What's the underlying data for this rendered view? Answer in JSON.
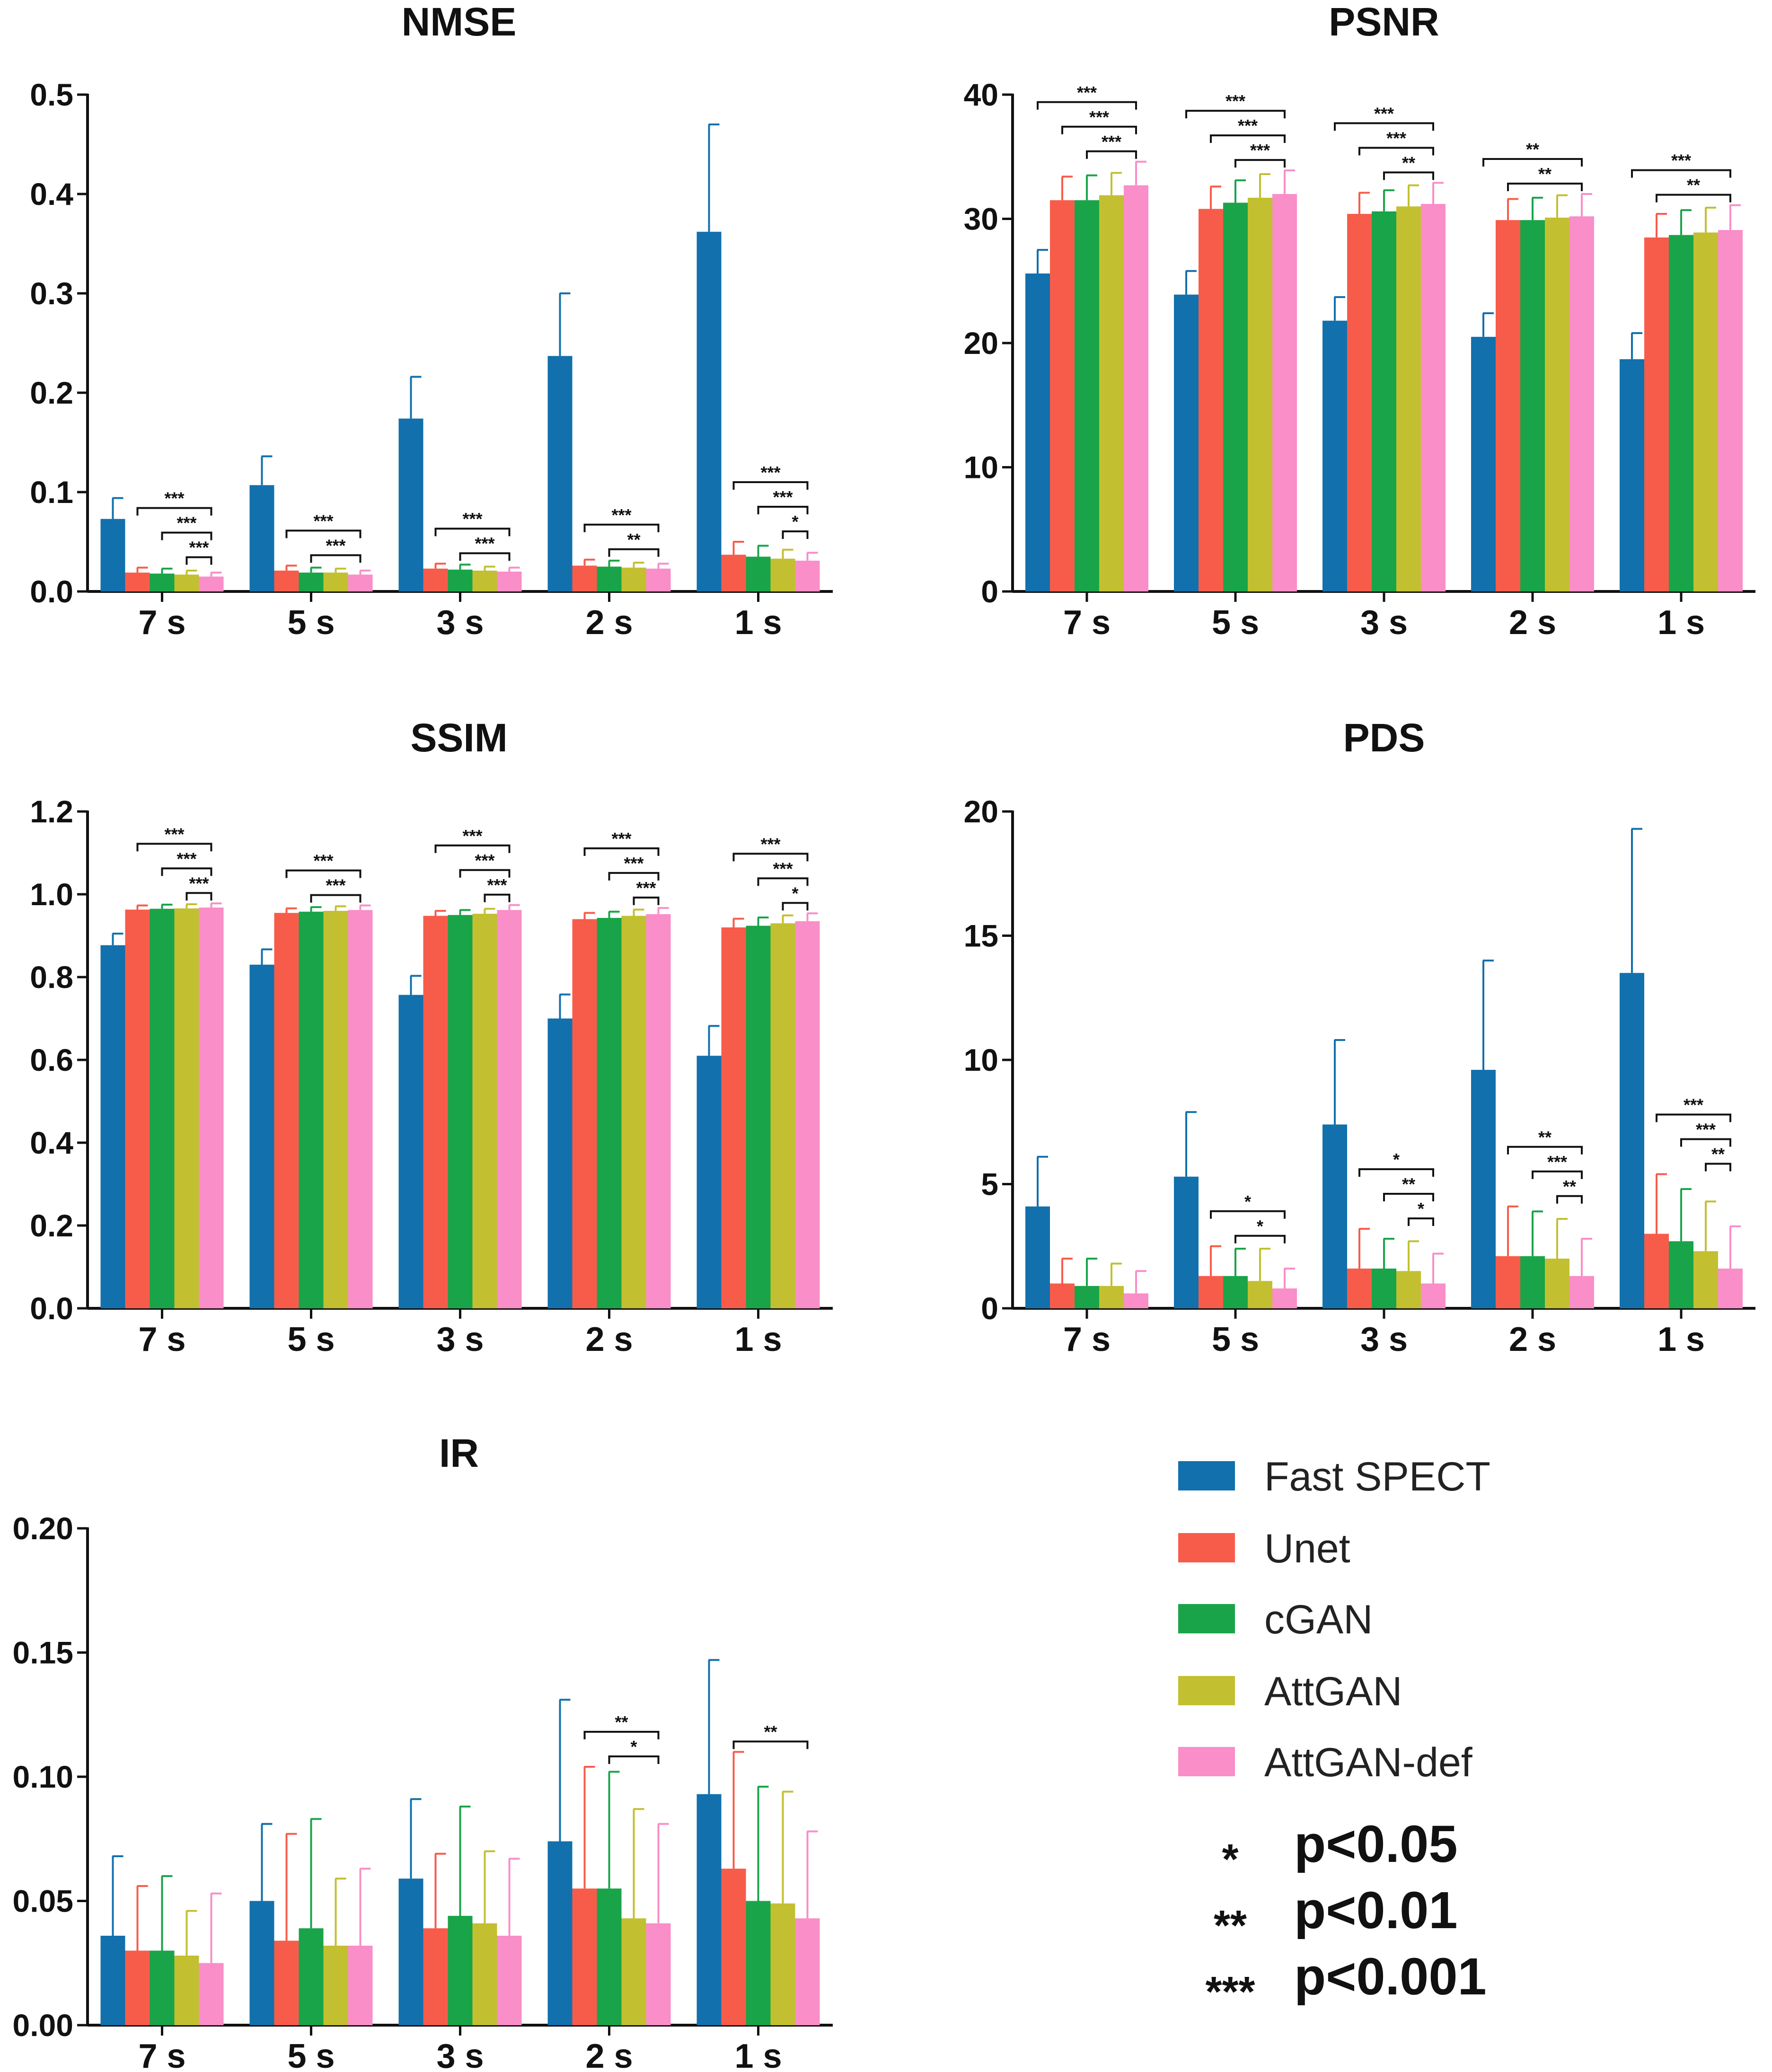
{
  "legend": {
    "items": [
      {
        "name": "Fast SPECT",
        "color": "#1270ad"
      },
      {
        "name": "Unet",
        "color": "#f75c4a"
      },
      {
        "name": "cGAN",
        "color": "#19a449"
      },
      {
        "name": "AttGAN",
        "color": "#c2c030"
      },
      {
        "name": "AttGAN-def",
        "color": "#f98ec8"
      }
    ],
    "significance": [
      {
        "stars": "*",
        "label": "p<0.05"
      },
      {
        "stars": "**",
        "label": "p<0.01"
      },
      {
        "stars": "***",
        "label": "p<0.001"
      }
    ]
  },
  "chart_data": [
    {
      "type": "bar",
      "title": "NMSE",
      "categories": [
        "7 s",
        "5 s",
        "3 s",
        "2 s",
        "1 s"
      ],
      "ylim": [
        0,
        0.5
      ],
      "yticks": [
        "0.0",
        "0.1",
        "0.2",
        "0.3",
        "0.4",
        "0.5"
      ],
      "series": [
        {
          "name": "Fast SPECT",
          "values": [
            0.073,
            0.107,
            0.174,
            0.237,
            0.362
          ],
          "errors": [
            0.021,
            0.029,
            0.042,
            0.063,
            0.108
          ]
        },
        {
          "name": "Unet",
          "values": [
            0.019,
            0.021,
            0.023,
            0.026,
            0.037
          ],
          "errors": [
            0.005,
            0.005,
            0.005,
            0.006,
            0.013
          ]
        },
        {
          "name": "cGAN",
          "values": [
            0.018,
            0.019,
            0.022,
            0.025,
            0.035
          ],
          "errors": [
            0.005,
            0.005,
            0.005,
            0.006,
            0.011
          ]
        },
        {
          "name": "AttGAN",
          "values": [
            0.017,
            0.019,
            0.021,
            0.024,
            0.033
          ],
          "errors": [
            0.004,
            0.004,
            0.004,
            0.005,
            0.009
          ]
        },
        {
          "name": "AttGAN-def",
          "values": [
            0.015,
            0.017,
            0.02,
            0.023,
            0.031
          ],
          "errors": [
            0.004,
            0.004,
            0.004,
            0.005,
            0.008
          ]
        }
      ],
      "significance": [
        {
          "group": 0,
          "from": 1,
          "to": 4,
          "label": "***"
        },
        {
          "group": 0,
          "from": 2,
          "to": 4,
          "label": "***"
        },
        {
          "group": 0,
          "from": 3,
          "to": 4,
          "label": "***"
        },
        {
          "group": 1,
          "from": 1,
          "to": 4,
          "label": "***"
        },
        {
          "group": 1,
          "from": 2,
          "to": 4,
          "label": "***"
        },
        {
          "group": 2,
          "from": 1,
          "to": 4,
          "label": "***"
        },
        {
          "group": 2,
          "from": 2,
          "to": 4,
          "label": "***"
        },
        {
          "group": 3,
          "from": 1,
          "to": 4,
          "label": "***"
        },
        {
          "group": 3,
          "from": 2,
          "to": 4,
          "label": "**"
        },
        {
          "group": 4,
          "from": 1,
          "to": 4,
          "label": "***"
        },
        {
          "group": 4,
          "from": 2,
          "to": 4,
          "label": "***"
        },
        {
          "group": 4,
          "from": 3,
          "to": 4,
          "label": "*"
        }
      ]
    },
    {
      "type": "bar",
      "title": "PSNR",
      "categories": [
        "7 s",
        "5 s",
        "3 s",
        "2 s",
        "1 s"
      ],
      "ylim": [
        0,
        40
      ],
      "yticks": [
        "0",
        "10",
        "20",
        "30",
        "40"
      ],
      "series": [
        {
          "name": "Fast SPECT",
          "values": [
            25.6,
            23.9,
            21.8,
            20.5,
            18.7
          ],
          "errors": [
            1.9,
            1.9,
            1.9,
            1.9,
            2.1
          ]
        },
        {
          "name": "Unet",
          "values": [
            31.5,
            30.8,
            30.4,
            29.9,
            28.5
          ],
          "errors": [
            1.9,
            1.8,
            1.7,
            1.7,
            1.9
          ]
        },
        {
          "name": "cGAN",
          "values": [
            31.5,
            31.3,
            30.6,
            29.9,
            28.7
          ],
          "errors": [
            2.0,
            1.8,
            1.7,
            1.8,
            2.0
          ]
        },
        {
          "name": "AttGAN",
          "values": [
            31.9,
            31.7,
            31.0,
            30.1,
            28.9
          ],
          "errors": [
            1.8,
            1.9,
            1.7,
            1.8,
            2.0
          ]
        },
        {
          "name": "AttGAN-def",
          "values": [
            32.7,
            32.0,
            31.2,
            30.2,
            29.1
          ],
          "errors": [
            1.9,
            1.9,
            1.7,
            1.8,
            2.0
          ]
        }
      ],
      "significance": [
        {
          "group": 0,
          "from": 0,
          "to": 4,
          "label": "***"
        },
        {
          "group": 0,
          "from": 1,
          "to": 4,
          "label": "***"
        },
        {
          "group": 0,
          "from": 2,
          "to": 4,
          "label": "***"
        },
        {
          "group": 1,
          "from": 0,
          "to": 4,
          "label": "***"
        },
        {
          "group": 1,
          "from": 1,
          "to": 4,
          "label": "***"
        },
        {
          "group": 1,
          "from": 2,
          "to": 4,
          "label": "***"
        },
        {
          "group": 2,
          "from": 0,
          "to": 4,
          "label": "***"
        },
        {
          "group": 2,
          "from": 1,
          "to": 4,
          "label": "***"
        },
        {
          "group": 2,
          "from": 2,
          "to": 4,
          "label": "**"
        },
        {
          "group": 3,
          "from": 0,
          "to": 4,
          "label": "**"
        },
        {
          "group": 3,
          "from": 1,
          "to": 4,
          "label": "**"
        },
        {
          "group": 4,
          "from": 0,
          "to": 4,
          "label": "***"
        },
        {
          "group": 4,
          "from": 1,
          "to": 4,
          "label": "**"
        }
      ]
    },
    {
      "type": "bar",
      "title": "SSIM",
      "categories": [
        "7 s",
        "5 s",
        "3 s",
        "2 s",
        "1 s"
      ],
      "ylim": [
        0,
        1.2
      ],
      "yticks": [
        "0.0",
        "0.2",
        "0.4",
        "0.6",
        "0.8",
        "1.0",
        "1.2"
      ],
      "series": [
        {
          "name": "Fast SPECT",
          "values": [
            0.877,
            0.83,
            0.757,
            0.7,
            0.61
          ],
          "errors": [
            0.028,
            0.037,
            0.046,
            0.058,
            0.072
          ]
        },
        {
          "name": "Unet",
          "values": [
            0.963,
            0.955,
            0.948,
            0.94,
            0.92
          ],
          "errors": [
            0.01,
            0.011,
            0.012,
            0.015,
            0.021
          ]
        },
        {
          "name": "cGAN",
          "values": [
            0.965,
            0.958,
            0.95,
            0.943,
            0.924
          ],
          "errors": [
            0.01,
            0.011,
            0.012,
            0.015,
            0.02
          ]
        },
        {
          "name": "AttGAN",
          "values": [
            0.966,
            0.96,
            0.953,
            0.948,
            0.93
          ],
          "errors": [
            0.01,
            0.011,
            0.012,
            0.015,
            0.019
          ]
        },
        {
          "name": "AttGAN-def",
          "values": [
            0.968,
            0.962,
            0.962,
            0.952,
            0.935
          ],
          "errors": [
            0.01,
            0.011,
            0.012,
            0.015,
            0.019
          ]
        }
      ],
      "significance": [
        {
          "group": 0,
          "from": 1,
          "to": 4,
          "label": "***"
        },
        {
          "group": 0,
          "from": 2,
          "to": 4,
          "label": "***"
        },
        {
          "group": 0,
          "from": 3,
          "to": 4,
          "label": "***"
        },
        {
          "group": 1,
          "from": 1,
          "to": 4,
          "label": "***"
        },
        {
          "group": 1,
          "from": 2,
          "to": 4,
          "label": "***"
        },
        {
          "group": 2,
          "from": 1,
          "to": 4,
          "label": "***"
        },
        {
          "group": 2,
          "from": 2,
          "to": 4,
          "label": "***"
        },
        {
          "group": 2,
          "from": 3,
          "to": 4,
          "label": "***"
        },
        {
          "group": 3,
          "from": 1,
          "to": 4,
          "label": "***"
        },
        {
          "group": 3,
          "from": 2,
          "to": 4,
          "label": "***"
        },
        {
          "group": 3,
          "from": 3,
          "to": 4,
          "label": "***"
        },
        {
          "group": 4,
          "from": 1,
          "to": 4,
          "label": "***"
        },
        {
          "group": 4,
          "from": 2,
          "to": 4,
          "label": "***"
        },
        {
          "group": 4,
          "from": 3,
          "to": 4,
          "label": "*"
        }
      ]
    },
    {
      "type": "bar",
      "title": "PDS",
      "categories": [
        "7 s",
        "5 s",
        "3 s",
        "2 s",
        "1 s"
      ],
      "ylim": [
        0,
        20
      ],
      "yticks": [
        "0",
        "5",
        "10",
        "15",
        "20"
      ],
      "series": [
        {
          "name": "Fast SPECT",
          "values": [
            4.1,
            5.3,
            7.4,
            9.6,
            13.5
          ],
          "errors": [
            2.0,
            2.6,
            3.4,
            4.4,
            5.8
          ]
        },
        {
          "name": "Unet",
          "values": [
            1.0,
            1.3,
            1.6,
            2.1,
            3.0
          ],
          "errors": [
            1.0,
            1.2,
            1.6,
            2.0,
            2.4
          ]
        },
        {
          "name": "cGAN",
          "values": [
            0.9,
            1.3,
            1.6,
            2.1,
            2.7
          ],
          "errors": [
            1.1,
            1.1,
            1.2,
            1.8,
            2.1
          ]
        },
        {
          "name": "AttGAN",
          "values": [
            0.9,
            1.1,
            1.5,
            2.0,
            2.3
          ],
          "errors": [
            0.9,
            1.3,
            1.2,
            1.6,
            2.0
          ]
        },
        {
          "name": "AttGAN-def",
          "values": [
            0.6,
            0.8,
            1.0,
            1.3,
            1.6
          ],
          "errors": [
            0.9,
            0.8,
            1.2,
            1.5,
            1.7
          ]
        }
      ],
      "significance": [
        {
          "group": 1,
          "from": 1,
          "to": 4,
          "label": "*"
        },
        {
          "group": 1,
          "from": 2,
          "to": 4,
          "label": "*"
        },
        {
          "group": 2,
          "from": 1,
          "to": 4,
          "label": "*"
        },
        {
          "group": 2,
          "from": 2,
          "to": 4,
          "label": "**"
        },
        {
          "group": 2,
          "from": 3,
          "to": 4,
          "label": "*"
        },
        {
          "group": 3,
          "from": 1,
          "to": 4,
          "label": "**"
        },
        {
          "group": 3,
          "from": 2,
          "to": 4,
          "label": "***"
        },
        {
          "group": 3,
          "from": 3,
          "to": 4,
          "label": "**"
        },
        {
          "group": 4,
          "from": 1,
          "to": 4,
          "label": "***"
        },
        {
          "group": 4,
          "from": 2,
          "to": 4,
          "label": "***"
        },
        {
          "group": 4,
          "from": 3,
          "to": 4,
          "label": "**"
        }
      ]
    },
    {
      "type": "bar",
      "title": "IR",
      "categories": [
        "7 s",
        "5 s",
        "3 s",
        "2 s",
        "1 s"
      ],
      "ylim": [
        0,
        0.2
      ],
      "yticks": [
        "0.00",
        "0.05",
        "0.10",
        "0.15",
        "0.20"
      ],
      "series": [
        {
          "name": "Fast SPECT",
          "values": [
            0.036,
            0.05,
            0.059,
            0.074,
            0.093
          ],
          "errors": [
            0.032,
            0.031,
            0.032,
            0.057,
            0.054
          ]
        },
        {
          "name": "Unet",
          "values": [
            0.03,
            0.034,
            0.039,
            0.055,
            0.063
          ],
          "errors": [
            0.026,
            0.043,
            0.03,
            0.049,
            0.047
          ]
        },
        {
          "name": "cGAN",
          "values": [
            0.03,
            0.039,
            0.044,
            0.055,
            0.05
          ],
          "errors": [
            0.03,
            0.044,
            0.044,
            0.047,
            0.046
          ]
        },
        {
          "name": "AttGAN",
          "values": [
            0.028,
            0.032,
            0.041,
            0.043,
            0.049
          ],
          "errors": [
            0.018,
            0.027,
            0.029,
            0.044,
            0.045
          ]
        },
        {
          "name": "AttGAN-def",
          "values": [
            0.025,
            0.032,
            0.036,
            0.041,
            0.043
          ],
          "errors": [
            0.028,
            0.031,
            0.031,
            0.04,
            0.035
          ]
        }
      ],
      "significance": [
        {
          "group": 3,
          "from": 1,
          "to": 4,
          "label": "**"
        },
        {
          "group": 3,
          "from": 2,
          "to": 4,
          "label": "*"
        },
        {
          "group": 4,
          "from": 1,
          "to": 4,
          "label": "**"
        }
      ]
    }
  ]
}
